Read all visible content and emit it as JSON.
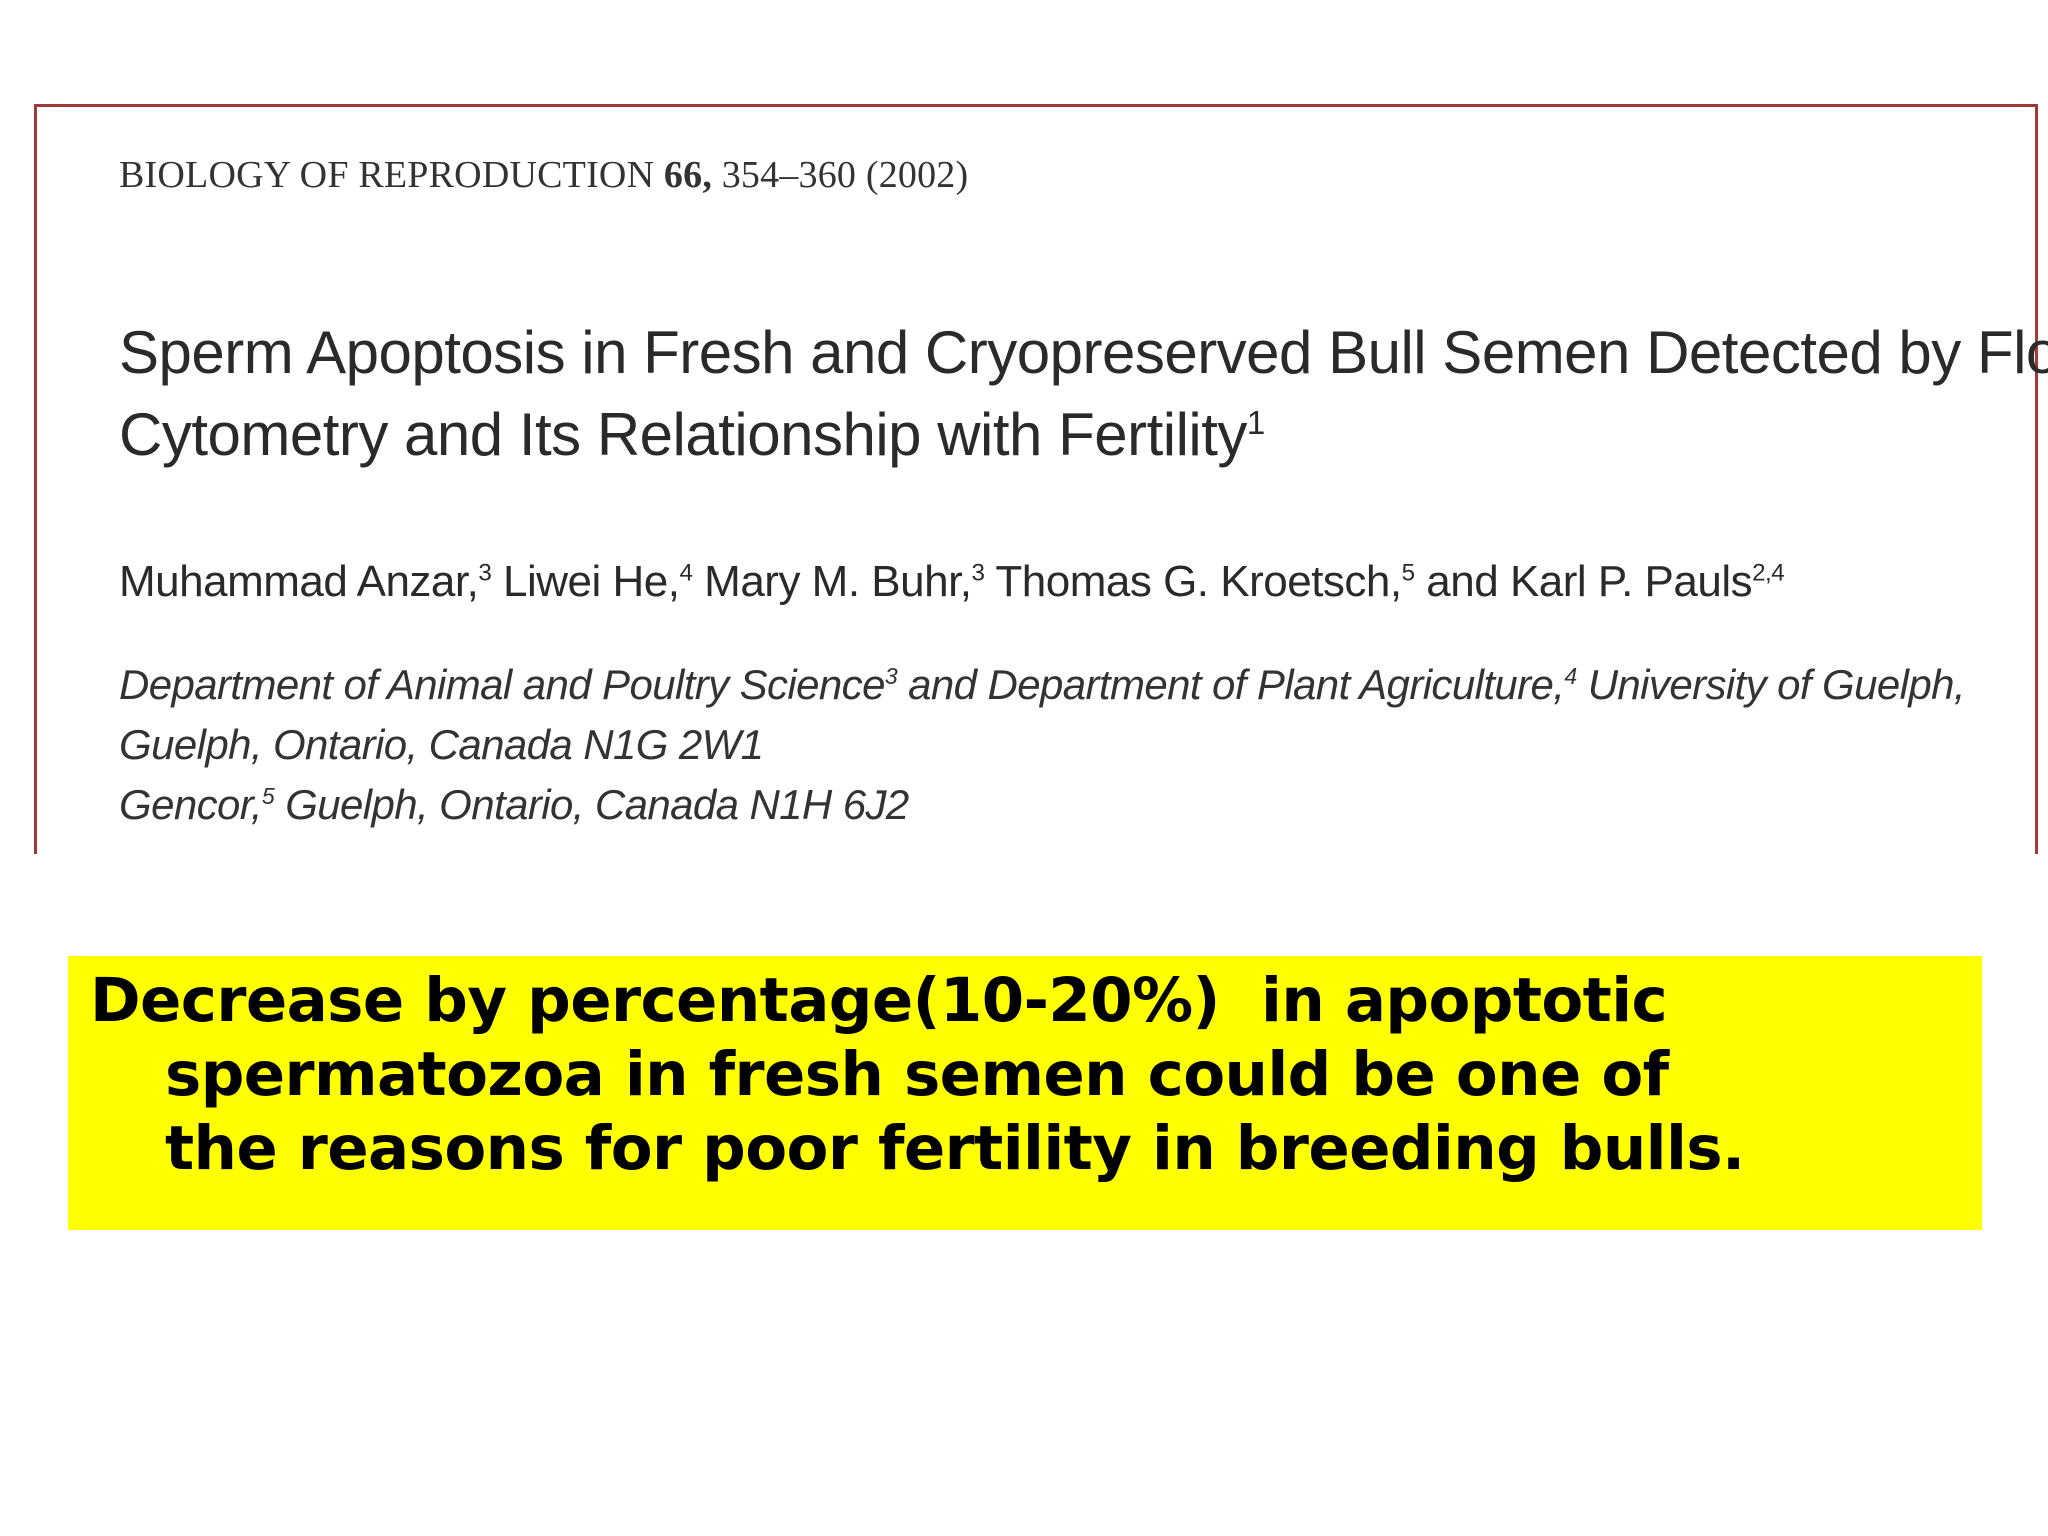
{
  "paper": {
    "journal": "BIOLOGY OF REPRODUCTION",
    "volume": "66,",
    "pages_year": "354–360 (2002)",
    "title_line1": "Sperm Apoptosis in Fresh and Cryopreserved Bull Semen Detected by Flow",
    "title_line2": "Cytometry and Its Relationship with Fertility",
    "title_footnote": "1",
    "authors": [
      {
        "name": "Muhammad Anzar,",
        "sup": "3"
      },
      {
        "name": " Liwei He,",
        "sup": "4"
      },
      {
        "name": " Mary M. Buhr,",
        "sup": "3"
      },
      {
        "name": " Thomas G. Kroetsch,",
        "sup": "5"
      },
      {
        "name": " and Karl P. Pauls",
        "sup": "2,4"
      }
    ],
    "affiliation_line1_a": "Department of Animal and Poultry Science",
    "affiliation_line1_sup_a": "3",
    "affiliation_line1_b": " and Department of Plant Agriculture,",
    "affiliation_line1_sup_b": "4",
    "affiliation_line1_c": " University of Guelph,",
    "affiliation_line2": "Guelph, Ontario, Canada N1G 2W1",
    "affiliation_line3_a": "Gencor,",
    "affiliation_line3_sup": "5",
    "affiliation_line3_b": " Guelph, Ontario, Canada N1H 6J2"
  },
  "highlight": {
    "line1": "Decrease by percentage(10-20%)  in apoptotic",
    "line2": "spermatozoa in fresh semen could be one of",
    "line3": "the reasons for poor fertility in breeding bulls.",
    "background_color": "#ffff00"
  }
}
